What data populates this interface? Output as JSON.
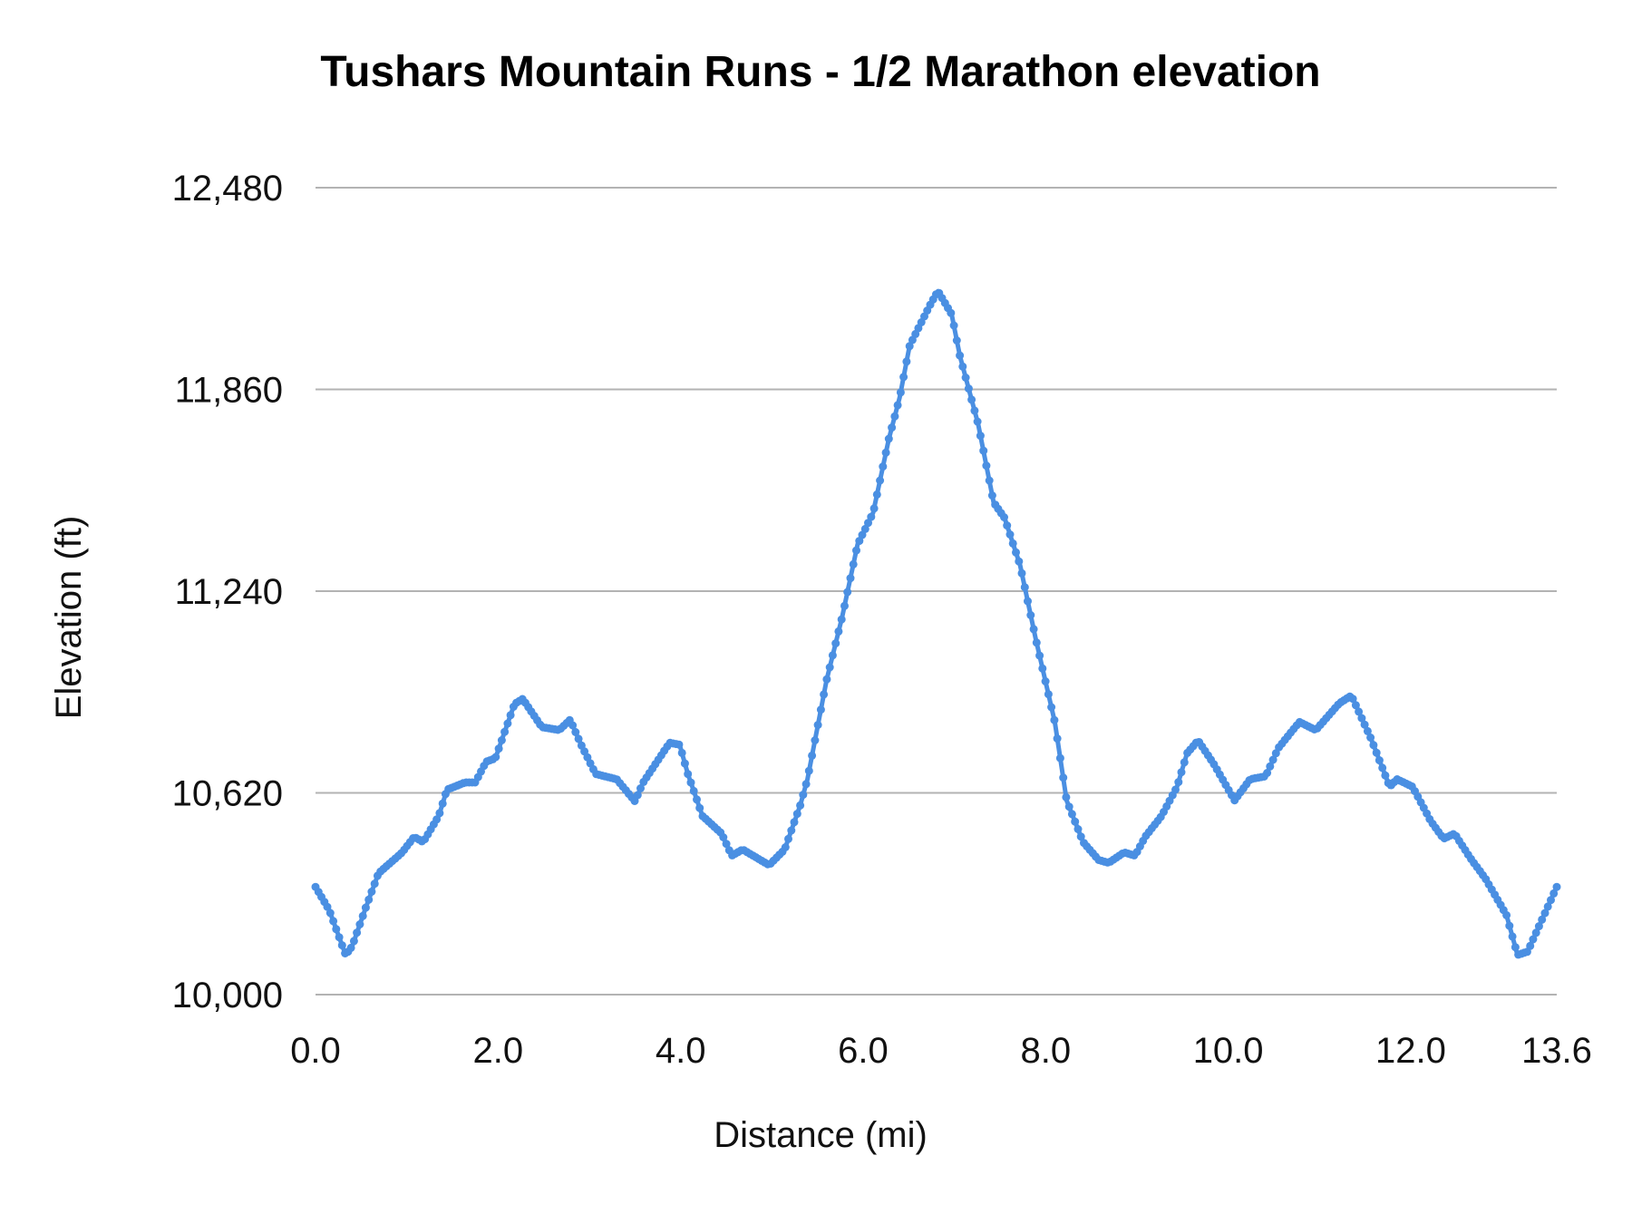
{
  "chart_data": {
    "type": "line",
    "title": "Tushars Mountain Runs - 1/2 Marathon elevation",
    "xlabel": "Distance (mi)",
    "ylabel": "Elevation (ft)",
    "xlim": [
      0,
      13.6
    ],
    "ylim": [
      10000,
      12480
    ],
    "x_ticks": [
      "0.0",
      "2.0",
      "4.0",
      "6.0",
      "8.0",
      "10.0",
      "12.0",
      "13.6"
    ],
    "x_tick_values": [
      0,
      2,
      4,
      6,
      8,
      10,
      12,
      13.6
    ],
    "y_ticks": [
      "10,000",
      "10,620",
      "11,240",
      "11,860",
      "12,480"
    ],
    "y_tick_values": [
      10000,
      10620,
      11240,
      11860,
      12480
    ],
    "grid": "horizontal",
    "legend": "none",
    "markers": true,
    "colors": {
      "series": "#4a8fe2",
      "grid": "#b3b3b3"
    },
    "series": [
      {
        "x": [
          0,
          0.15,
          0.33,
          0.4,
          0.55,
          0.69,
          0.95,
          1.08,
          1.18,
          1.35,
          1.44,
          1.64,
          1.75,
          1.87,
          1.97,
          2.18,
          2.27,
          2.48,
          2.67,
          2.79,
          2.91,
          3.07,
          3.3,
          3.5,
          3.59,
          3.88,
          3.99,
          4.08,
          4.24,
          4.45,
          4.56,
          4.68,
          4.97,
          5.14,
          5.31,
          5.39,
          5.6,
          5.77,
          5.94,
          6.11,
          6.28,
          6.4,
          6.51,
          6.74,
          6.82,
          6.97,
          7.06,
          7.26,
          7.43,
          7.55,
          7.72,
          7.89,
          8.1,
          8.23,
          8.41,
          8.58,
          8.69,
          8.86,
          8.98,
          9.09,
          9.27,
          9.44,
          9.55,
          9.67,
          9.84,
          10.07,
          10.24,
          10.41,
          10.55,
          10.78,
          10.96,
          11.22,
          11.35,
          11.56,
          11.77,
          11.85,
          12.02,
          12.22,
          12.36,
          12.48,
          12.65,
          12.82,
          13.05,
          13.17,
          13.28,
          13.6
        ],
        "y": [
          10331,
          10260,
          10122,
          10148,
          10267,
          10373,
          10437,
          10485,
          10469,
          10549,
          10630,
          10652,
          10652,
          10716,
          10726,
          10893,
          10909,
          10822,
          10813,
          10845,
          10768,
          10678,
          10662,
          10594,
          10652,
          10774,
          10768,
          10678,
          10549,
          10495,
          10427,
          10446,
          10398,
          10446,
          10581,
          10662,
          10967,
          11160,
          11384,
          11481,
          11706,
          11834,
          11995,
          12123,
          12162,
          12091,
          11963,
          11754,
          11513,
          11465,
          11320,
          11095,
          10838,
          10597,
          10469,
          10414,
          10405,
          10437,
          10427,
          10485,
          10549,
          10639,
          10742,
          10781,
          10710,
          10597,
          10662,
          10671,
          10758,
          10838,
          10813,
          10896,
          10919,
          10790,
          10639,
          10662,
          10639,
          10533,
          10479,
          10495,
          10421,
          10356,
          10244,
          10122,
          10132,
          10331
        ]
      }
    ]
  }
}
